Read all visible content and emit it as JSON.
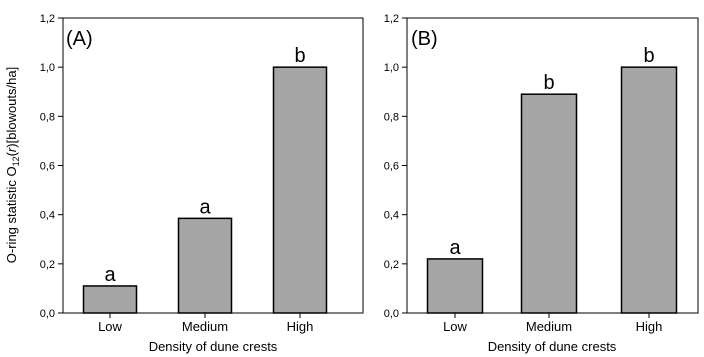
{
  "chart_data": [
    {
      "type": "bar",
      "panel_label": "(A)",
      "categories": [
        "Low",
        "Medium",
        "High"
      ],
      "values": [
        0.11,
        0.385,
        1.0
      ],
      "significance_letters": [
        "a",
        "a",
        "b"
      ],
      "xlabel": "Density of dune crests",
      "ylabel_prefix": "O-ring statistic O",
      "ylabel_subscript": "12",
      "ylabel_italic": "r",
      "ylabel_suffix": "[blowouts/ha]",
      "ylim": [
        0,
        1.2
      ],
      "yticks": [
        "0,0",
        "0,2",
        "0,4",
        "0,6",
        "0,8",
        "1,0",
        "1,2"
      ],
      "grid": false,
      "bar_color": "#a6a6a6"
    },
    {
      "type": "bar",
      "panel_label": "(B)",
      "categories": [
        "Low",
        "Medium",
        "High"
      ],
      "values": [
        0.22,
        0.89,
        1.0
      ],
      "significance_letters": [
        "a",
        "b",
        "b"
      ],
      "xlabel": "Density of dune crests",
      "ylim": [
        0,
        1.2
      ],
      "yticks": [
        "0,0",
        "0,2",
        "0,4",
        "0,6",
        "0,8",
        "1,0",
        "1,2"
      ],
      "grid": false,
      "bar_color": "#a6a6a6"
    }
  ]
}
